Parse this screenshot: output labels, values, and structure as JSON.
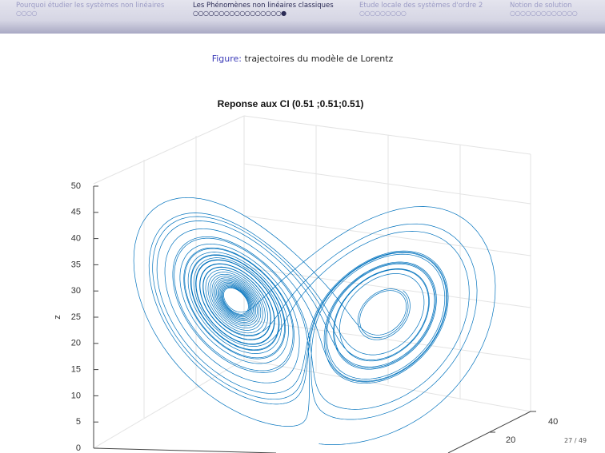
{
  "nav": [
    {
      "title": "Pourquoi étudier les systèmes non linéaires",
      "dots": "○○○○"
    },
    {
      "title": "Les Phénomènes non linéaires classiques",
      "dots": "○○○○○○○○○○○○○○○○○●"
    },
    {
      "title": "Etude locale des systèmes d'ordre 2",
      "dots": "○○○○○○○○○"
    },
    {
      "title": "Notion de solution",
      "dots": "○○○○○○○○○○○○○"
    }
  ],
  "figure": {
    "label": "Figure:",
    "caption": "trajectoires du modèle de Lorentz"
  },
  "plot": {
    "title": "Reponse aux CI (0.51 ;0.51;0.51)",
    "zlabel": "z",
    "zlim": [
      0,
      50
    ],
    "zticks": [
      0,
      5,
      10,
      15,
      20,
      25,
      30,
      35,
      40,
      45,
      50
    ],
    "yticks": [
      20,
      40
    ]
  },
  "page": "27 / 49"
}
